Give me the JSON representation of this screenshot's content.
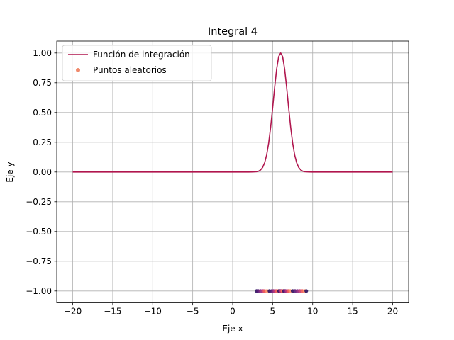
{
  "chart_data": {
    "type": "line",
    "title": "Integral 4",
    "xlabel": "Eje x",
    "ylabel": "Eje y",
    "xlim": [
      -22,
      22
    ],
    "ylim": [
      -1.1,
      1.1
    ],
    "grid": true,
    "legend_position": "top-left",
    "x_ticks": [
      -20,
      -15,
      -10,
      -5,
      0,
      5,
      10,
      15,
      20
    ],
    "x_tick_labels": [
      "−20",
      "−15",
      "−10",
      "−5",
      "0",
      "5",
      "10",
      "15",
      "20"
    ],
    "y_ticks": [
      -1.0,
      -0.75,
      -0.5,
      -0.25,
      0.0,
      0.25,
      0.5,
      0.75,
      1.0
    ],
    "y_tick_labels": [
      "−1.00",
      "−0.75",
      "−0.50",
      "−0.25",
      "0.00",
      "0.25",
      "0.50",
      "0.75",
      "1.00"
    ],
    "series": [
      {
        "name": "Función de integración",
        "kind": "line",
        "color": "#b0164e",
        "x": [
          -20,
          -15,
          -10,
          -5,
          0,
          1,
          2,
          2.5,
          3,
          3.25,
          3.5,
          3.75,
          4,
          4.25,
          4.5,
          4.75,
          5,
          5.25,
          5.5,
          5.75,
          6,
          6.25,
          6.5,
          6.75,
          7,
          7.25,
          7.5,
          7.75,
          8,
          8.25,
          8.5,
          8.75,
          9,
          9.5,
          10,
          11,
          12,
          15,
          20
        ],
        "y": [
          0,
          0,
          0,
          0,
          0,
          0,
          0,
          0.0003,
          0.0029,
          0.0075,
          0.0178,
          0.039,
          0.0781,
          0.1437,
          0.243,
          0.3773,
          0.5394,
          0.7112,
          0.8645,
          0.9692,
          1.0,
          0.9692,
          0.8645,
          0.7112,
          0.5394,
          0.3773,
          0.243,
          0.1437,
          0.0781,
          0.039,
          0.0178,
          0.0075,
          0.0029,
          0.0003,
          0,
          0,
          0,
          0,
          0
        ]
      },
      {
        "name": "Puntos aleatorios",
        "kind": "scatter",
        "color": "#f08a6c",
        "palette": [
          "#2c115f",
          "#5a1876",
          "#8c2981",
          "#c03a76",
          "#f05b5a",
          "#fd9567"
        ],
        "x": [
          3.0,
          3.2,
          3.5,
          3.8,
          4.0,
          4.3,
          4.6,
          4.9,
          5.1,
          5.3,
          5.5,
          5.7,
          5.8,
          5.9,
          6.0,
          6.1,
          6.2,
          6.3,
          6.4,
          6.5,
          6.6,
          6.8,
          7.0,
          7.2,
          7.5,
          7.8,
          8.1,
          8.4,
          8.7,
          9.0,
          9.2
        ],
        "y": [
          -1.0,
          -1.0,
          -1.0,
          -1.0,
          -1.0,
          -1.0,
          -1.0,
          -1.0,
          -1.0,
          -1.0,
          -1.0,
          -1.0,
          -1.0,
          -1.0,
          -1.0,
          -1.0,
          -1.0,
          -1.0,
          -1.0,
          -1.0,
          -1.0,
          -1.0,
          -1.0,
          -1.0,
          -1.0,
          -1.0,
          -1.0,
          -1.0,
          -1.0,
          -1.0,
          -1.0
        ]
      }
    ]
  }
}
